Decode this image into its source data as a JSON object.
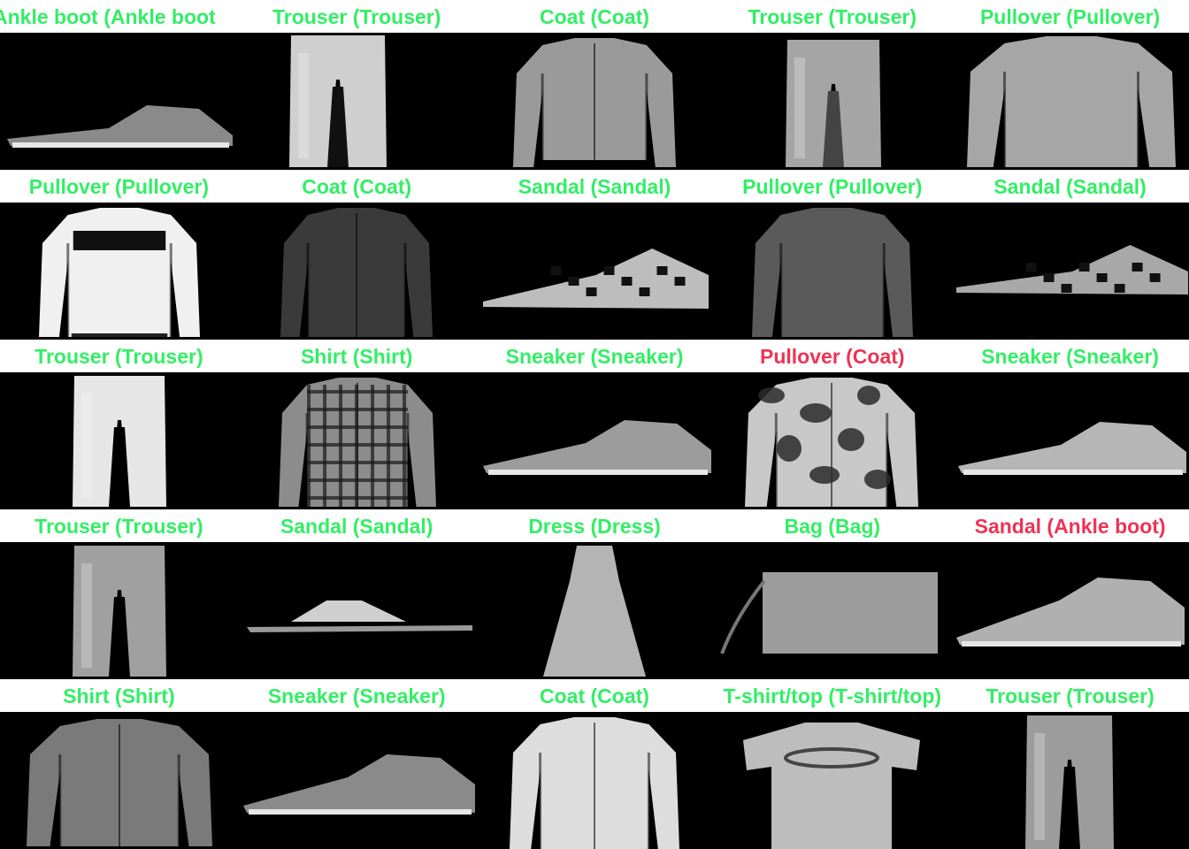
{
  "colors": {
    "correct": "#33ee66",
    "incorrect": "#ee3355",
    "image_background": "#000000",
    "caption_background": "#ffffff"
  },
  "items": [
    {
      "label": "Ankle boot (Ankle boot",
      "correct": true,
      "icon": "ankle-boot-icon"
    },
    {
      "label": "Trouser (Trouser)",
      "correct": true,
      "icon": "trouser-icon"
    },
    {
      "label": "Coat (Coat)",
      "correct": true,
      "icon": "coat-icon"
    },
    {
      "label": "Trouser (Trouser)",
      "correct": true,
      "icon": "trouser-icon"
    },
    {
      "label": "Pullover (Pullover)",
      "correct": true,
      "icon": "pullover-icon"
    },
    {
      "label": "Pullover (Pullover)",
      "correct": true,
      "icon": "pullover-icon"
    },
    {
      "label": "Coat (Coat)",
      "correct": true,
      "icon": "coat-icon"
    },
    {
      "label": "Sandal (Sandal)",
      "correct": true,
      "icon": "sandal-icon"
    },
    {
      "label": "Pullover (Pullover)",
      "correct": true,
      "icon": "pullover-icon"
    },
    {
      "label": "Sandal (Sandal)",
      "correct": true,
      "icon": "sandal-icon"
    },
    {
      "label": "Trouser (Trouser)",
      "correct": true,
      "icon": "trouser-icon"
    },
    {
      "label": "Shirt (Shirt)",
      "correct": true,
      "icon": "shirt-icon"
    },
    {
      "label": "Sneaker (Sneaker)",
      "correct": true,
      "icon": "sneaker-icon"
    },
    {
      "label": "Pullover (Coat)",
      "correct": false,
      "icon": "coat-icon"
    },
    {
      "label": "Sneaker (Sneaker)",
      "correct": true,
      "icon": "sneaker-icon"
    },
    {
      "label": "Trouser (Trouser)",
      "correct": true,
      "icon": "trouser-icon"
    },
    {
      "label": "Sandal (Sandal)",
      "correct": true,
      "icon": "sandal-icon"
    },
    {
      "label": "Dress (Dress)",
      "correct": true,
      "icon": "dress-icon"
    },
    {
      "label": "Bag (Bag)",
      "correct": true,
      "icon": "bag-icon"
    },
    {
      "label": "Sandal (Ankle boot)",
      "correct": false,
      "icon": "ankle-boot-icon"
    },
    {
      "label": "Shirt (Shirt)",
      "correct": true,
      "icon": "shirt-icon"
    },
    {
      "label": "Sneaker (Sneaker)",
      "correct": true,
      "icon": "sneaker-icon"
    },
    {
      "label": "Coat (Coat)",
      "correct": true,
      "icon": "coat-icon"
    },
    {
      "label": "T-shirt/top (T-shirt/top)",
      "correct": true,
      "icon": "tshirt-icon"
    },
    {
      "label": "Trouser (Trouser)",
      "correct": true,
      "icon": "trouser-icon"
    }
  ]
}
